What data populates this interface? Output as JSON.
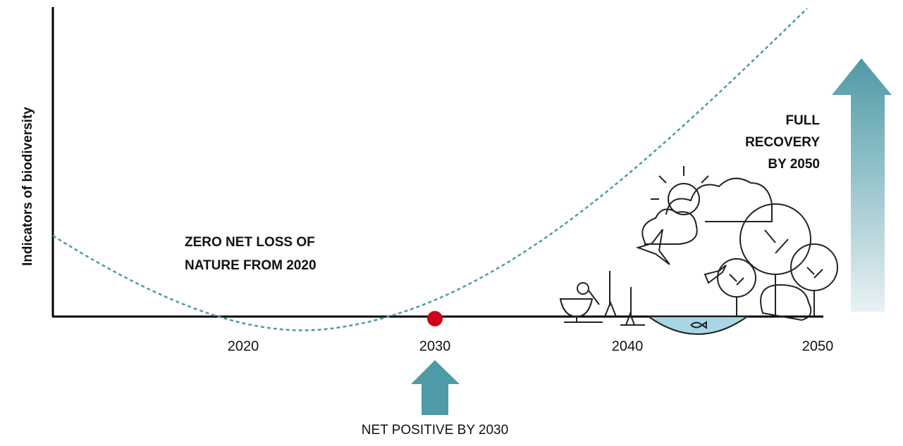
{
  "y_axis_label": "Indicators of biodiversity",
  "x_axis_labels": [
    "2020",
    "2030",
    "2040",
    "2050"
  ],
  "annotations": {
    "zero_net_loss": [
      "ZERO NET LOSS OF",
      "NATURE FROM 2020"
    ],
    "full_recovery": [
      "FULL",
      "RECOVERY",
      "BY 2050"
    ],
    "net_positive": "NET POSITIVE BY 2030"
  }
}
